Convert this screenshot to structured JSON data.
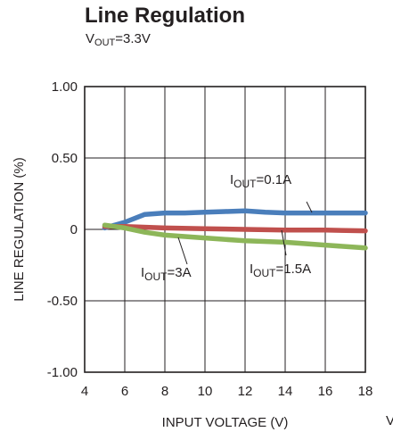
{
  "chart_data": {
    "type": "line",
    "title": "Line Regulation",
    "subtitle": {
      "main": "V",
      "sub": "OUT",
      "rest": "=3.3V"
    },
    "xlabel": "INPUT VOLTAGE (V)",
    "ylabel": "LINE REGULATION (%)",
    "xlim": [
      4,
      18
    ],
    "ylim": [
      -1.0,
      1.0
    ],
    "xticks": [
      4,
      6,
      8,
      10,
      12,
      14,
      16,
      18
    ],
    "xtick_labels": [
      "4",
      "6",
      "8",
      "10",
      "12",
      "14",
      "16",
      "18"
    ],
    "yticks": [
      1.0,
      0.5,
      0,
      -0.5,
      -1.0
    ],
    "ytick_labels": [
      "1.00",
      "0.50",
      "0",
      "-0.50",
      "-1.00"
    ],
    "grid": true,
    "series": [
      {
        "name": "IOUT=0.1A",
        "color": "#4a7ebb",
        "points": [
          [
            5,
            0.01
          ],
          [
            6,
            0.05
          ],
          [
            7,
            0.105
          ],
          [
            8,
            0.115
          ],
          [
            9,
            0.115
          ],
          [
            10,
            0.12
          ],
          [
            11,
            0.125
          ],
          [
            12,
            0.13
          ],
          [
            13,
            0.12
          ],
          [
            14,
            0.115
          ],
          [
            16,
            0.115
          ],
          [
            18,
            0.115
          ]
        ]
      },
      {
        "name": "IOUT=1.5A",
        "color": "#c0504d",
        "points": [
          [
            5,
            0.02
          ],
          [
            6,
            0.02
          ],
          [
            8,
            0.01
          ],
          [
            10,
            0.005
          ],
          [
            12,
            0.0
          ],
          [
            14,
            -0.005
          ],
          [
            16,
            -0.005
          ],
          [
            18,
            -0.01
          ]
        ]
      },
      {
        "name": "IOUT=3A",
        "color": "#8db659",
        "points": [
          [
            5,
            0.03
          ],
          [
            6,
            0.01
          ],
          [
            7,
            -0.02
          ],
          [
            8,
            -0.04
          ],
          [
            10,
            -0.06
          ],
          [
            12,
            -0.08
          ],
          [
            14,
            -0.09
          ],
          [
            16,
            -0.11
          ],
          [
            18,
            -0.13
          ]
        ]
      }
    ],
    "annotations": [
      {
        "main": "I",
        "sub": "OUT",
        "rest": "=0.1A",
        "series": "IOUT=0.1A"
      },
      {
        "main": "I",
        "sub": "OUT",
        "rest": "=3A",
        "series": "IOUT=3A"
      },
      {
        "main": "I",
        "sub": "OUT",
        "rest": "=1.5A",
        "series": "IOUT=1.5A"
      }
    ]
  },
  "edge_fragment": "V"
}
